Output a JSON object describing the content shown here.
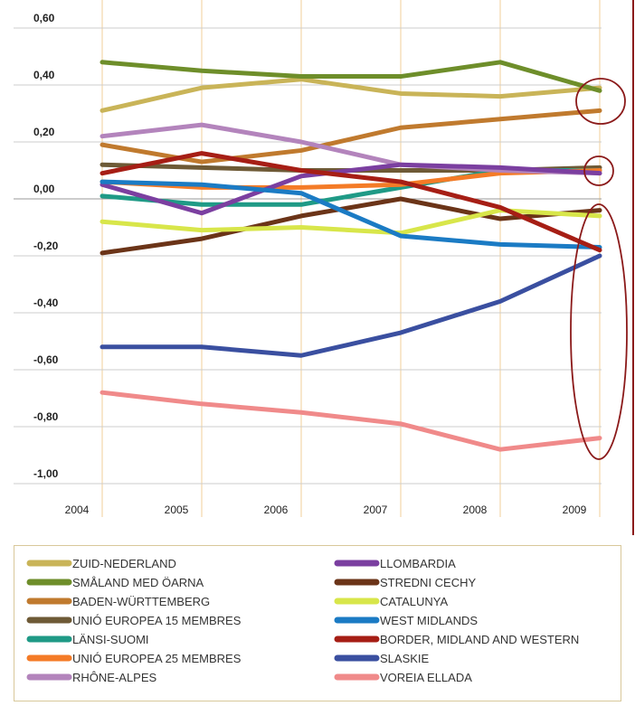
{
  "chart_data": {
    "type": "line",
    "categories": [
      "2004",
      "2005",
      "2006",
      "2007",
      "2008",
      "2009"
    ],
    "ylim": [
      -1.0,
      0.6
    ],
    "yticks": [
      {
        "value": 0.6,
        "label": "0,60"
      },
      {
        "value": 0.4,
        "label": "0,40"
      },
      {
        "value": 0.2,
        "label": "0,20"
      },
      {
        "value": 0,
        "label": "0,00"
      },
      {
        "value": -0.2,
        "label": "-0,20"
      },
      {
        "value": -0.4,
        "label": "-0,40"
      },
      {
        "value": -0.6,
        "label": "-0,60"
      },
      {
        "value": -0.8,
        "label": "-0,80"
      },
      {
        "value": -1.0,
        "label": "-1,00"
      }
    ],
    "grid": true,
    "series": [
      {
        "name": "ZUID-NEDERLAND",
        "color": "#c9b458",
        "values": [
          0.31,
          0.39,
          0.42,
          0.37,
          0.36,
          0.39
        ]
      },
      {
        "name": "SMÅLAND MED ÖARNA",
        "color": "#6e8e2a",
        "values": [
          0.48,
          0.45,
          0.43,
          0.43,
          0.48,
          0.38
        ]
      },
      {
        "name": "BADEN-WÜRTTEMBERG",
        "color": "#c07a2e",
        "values": [
          0.19,
          0.13,
          0.17,
          0.25,
          0.28,
          0.31
        ]
      },
      {
        "name": "UNIÓ EUROPEA 15 MEMBRES",
        "color": "#6e5a36",
        "values": [
          0.12,
          0.11,
          0.1,
          0.1,
          0.1,
          0.11
        ]
      },
      {
        "name": "LÄNSI-SUOMI",
        "color": "#1f9a86",
        "values": [
          0.01,
          -0.02,
          -0.02,
          0.04,
          0.1,
          0.1
        ]
      },
      {
        "name": "UNIÓ EUROPEA 25 MEMBRES",
        "color": "#f47b27",
        "values": [
          0.06,
          0.04,
          0.04,
          0.05,
          0.09,
          0.1
        ]
      },
      {
        "name": "RHÔNE-ALPES",
        "color": "#b384bc",
        "values": [
          0.22,
          0.26,
          0.2,
          0.12,
          0.1,
          0.09
        ]
      },
      {
        "name": "LLOMBARDIA",
        "color": "#7b3fa0",
        "values": [
          0.05,
          -0.05,
          0.08,
          0.12,
          0.11,
          0.09
        ]
      },
      {
        "name": "STREDNI CECHY",
        "color": "#6b3418",
        "values": [
          -0.19,
          -0.14,
          -0.06,
          0.0,
          -0.07,
          -0.04
        ]
      },
      {
        "name": "CATALUNYA",
        "color": "#d8e64a",
        "values": [
          -0.08,
          -0.11,
          -0.1,
          -0.12,
          -0.04,
          -0.06
        ]
      },
      {
        "name": "WEST MIDLANDS",
        "color": "#1b7bc4",
        "values": [
          0.06,
          0.05,
          0.02,
          -0.13,
          -0.16,
          -0.17
        ]
      },
      {
        "name": "BORDER, MIDLAND AND WESTERN",
        "color": "#a61e15",
        "values": [
          0.09,
          0.16,
          0.1,
          0.06,
          -0.03,
          -0.18
        ]
      },
      {
        "name": "SLASKIE",
        "color": "#3a4fa0",
        "values": [
          -0.52,
          -0.52,
          -0.55,
          -0.47,
          -0.36,
          -0.2
        ]
      },
      {
        "name": "VOREIA ELLADA",
        "color": "#f08a8a",
        "values": [
          -0.68,
          -0.72,
          -0.75,
          -0.79,
          -0.88,
          -0.84
        ]
      }
    ]
  }
}
